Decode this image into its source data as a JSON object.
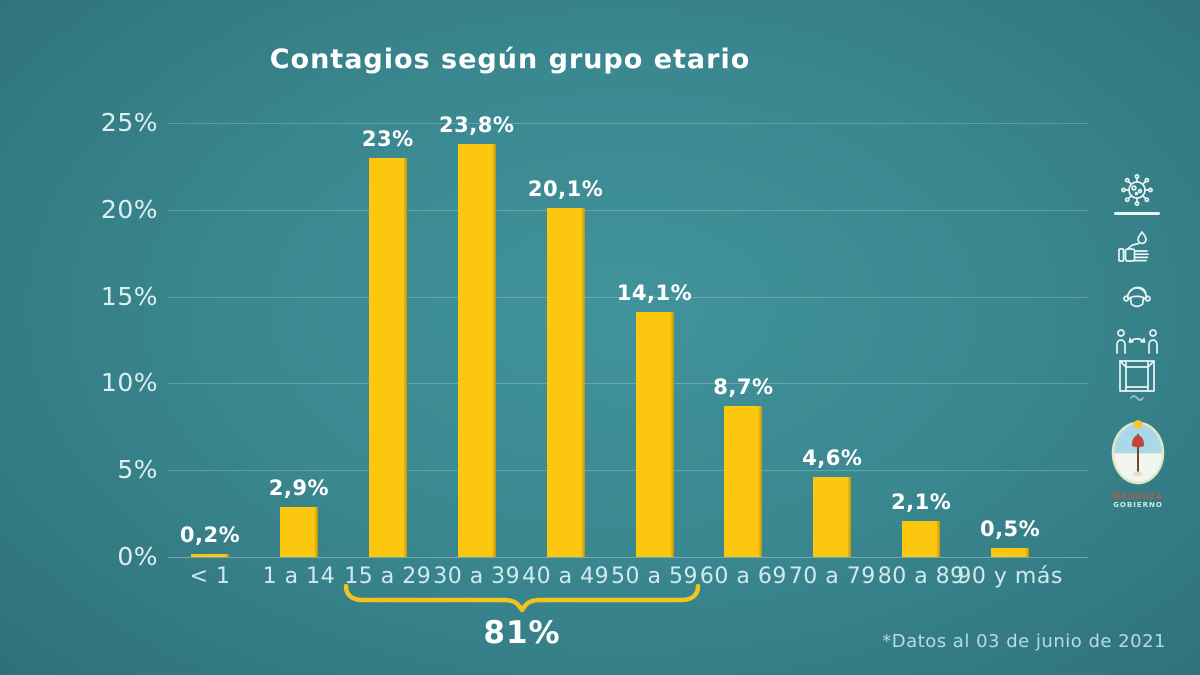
{
  "title": "Contagios según grupo etario",
  "chart_data": {
    "type": "bar",
    "title": "Contagios según grupo etario",
    "categories": [
      "< 1",
      "1 a 14",
      "15 a 29",
      "30 a 39",
      "40 a 49",
      "50 a 59",
      "60 a 69",
      "70 a 79",
      "80 a 89",
      "90 y más"
    ],
    "values": [
      0.2,
      2.9,
      23,
      23.8,
      20.1,
      14.1,
      8.7,
      4.6,
      2.1,
      0.5
    ],
    "value_labels": [
      "0,2%",
      "2,9%",
      "23%",
      "23,8%",
      "20,1%",
      "14,1%",
      "8,7%",
      "4,6%",
      "2,1%",
      "0,5%"
    ],
    "xlabel": "",
    "ylabel": "",
    "ylim": [
      0,
      25
    ],
    "ytick_step": 5,
    "ytick_labels": [
      "0%",
      "5%",
      "10%",
      "15%",
      "20%",
      "25%"
    ],
    "grid": true,
    "legend_position": "none",
    "bar_color": "#fcc70f",
    "bar_edge_color": "#bb9413",
    "annotation": {
      "label": "81%",
      "from_category": "15 a 29",
      "to_category": "50 a 59"
    }
  },
  "footnote": "*Datos al 03 de junio de 2021",
  "sidebar": {
    "icons": [
      "virus",
      "hand-washing",
      "face-mask",
      "social-distancing",
      "open-window-ventilation"
    ],
    "logo": {
      "line1": "MENDOZA",
      "line2": "GOBIERNO"
    }
  },
  "colors": {
    "background_center": "#41939c",
    "background_edge": "#2d6e77",
    "bar": "#fcc70f",
    "title_text": "#ffffff",
    "axis_text": "#dceff1",
    "gridline": "rgba(255,255,255,0.22)",
    "bracket": "#f2c41a",
    "footnote_text": "#b7dce0"
  }
}
